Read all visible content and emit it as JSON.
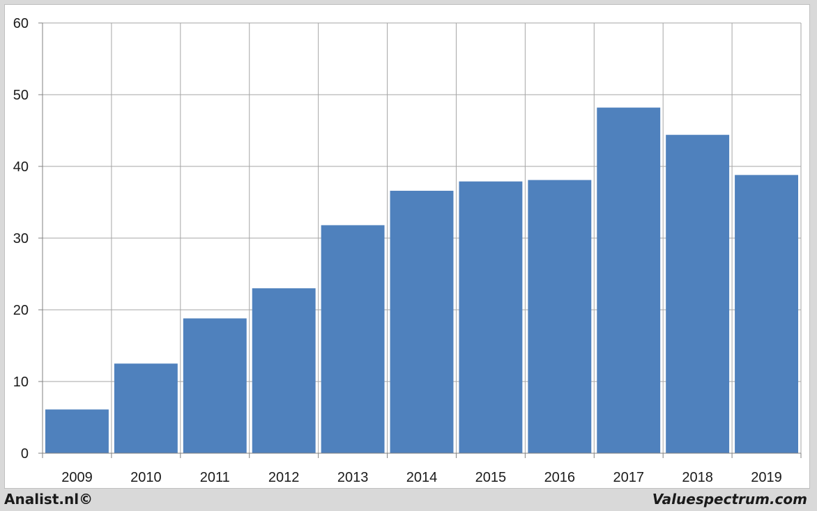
{
  "chart_data": {
    "type": "bar",
    "categories": [
      "2009",
      "2010",
      "2011",
      "2012",
      "2013",
      "2014",
      "2015",
      "2016",
      "2017",
      "2018",
      "2019"
    ],
    "values": [
      6.1,
      12.5,
      18.8,
      23.0,
      31.8,
      36.6,
      37.9,
      38.1,
      48.2,
      44.4,
      38.8
    ],
    "title": "",
    "xlabel": "",
    "ylabel": "",
    "ylim": [
      0,
      60
    ],
    "yticks": [
      "0",
      "10",
      "20",
      "30",
      "40",
      "50",
      "60"
    ],
    "grid": true,
    "legend": "none",
    "bar_color": "#4f81bd",
    "grid_color": "#a6a6a6"
  },
  "footer": {
    "left": "Analist.nl©",
    "right": "Valuespectrum.com"
  }
}
